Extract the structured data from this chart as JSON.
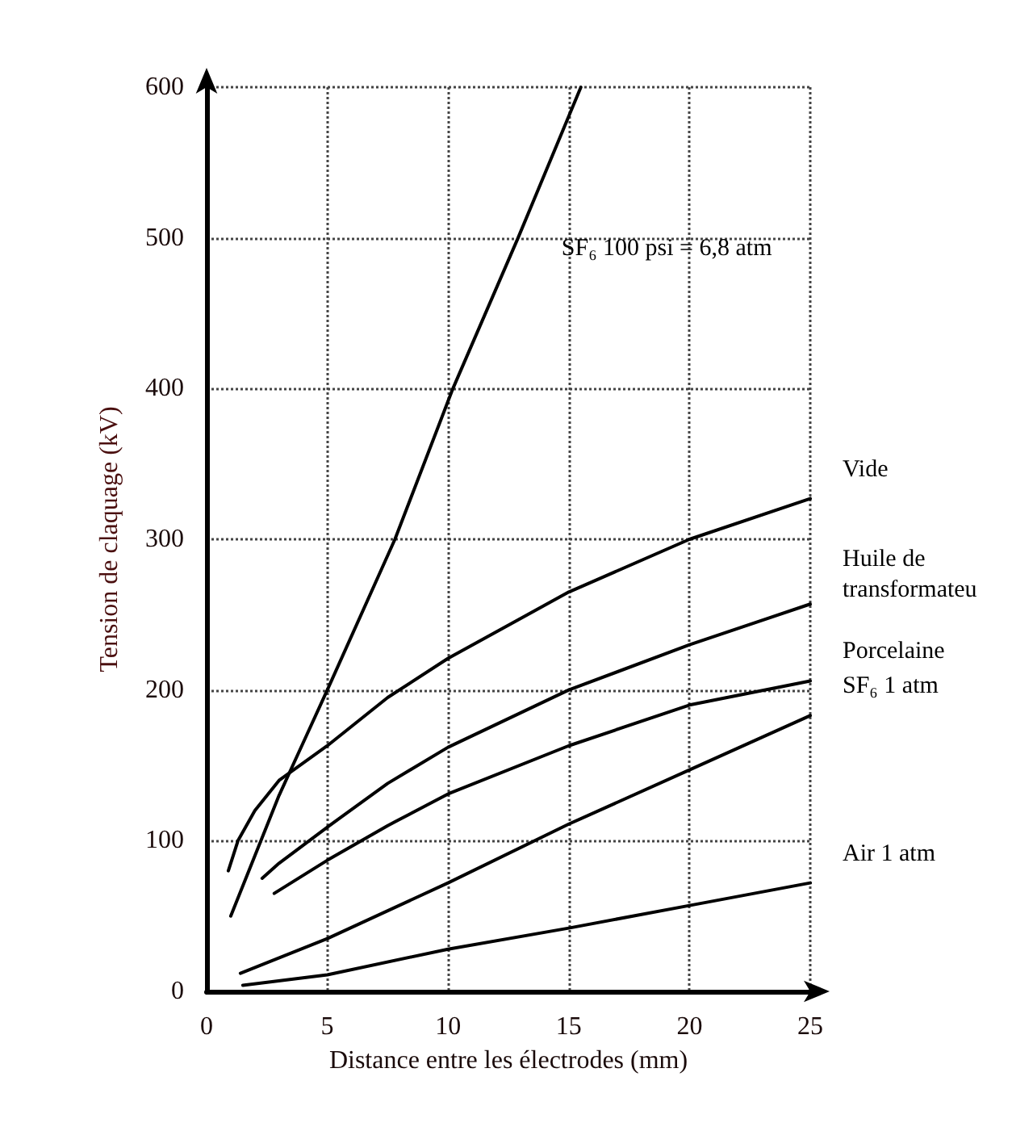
{
  "chart_data": {
    "type": "line",
    "xlabel": "Distance entre les électrodes (mm)",
    "ylabel": "Tension de claquage (kV)",
    "xlim": [
      0,
      25
    ],
    "xticks": [
      0,
      5,
      10,
      15,
      20,
      25
    ],
    "ylim": [
      0,
      600
    ],
    "yticks": [
      0,
      100,
      200,
      300,
      400,
      500,
      600
    ],
    "grid": true,
    "legend": false,
    "marker": "none",
    "line_style": "solid",
    "series": [
      {
        "name": "SF₆ 100 psi = 6,8 atm",
        "color": "#000000",
        "x": [
          1,
          2,
          3,
          4,
          5,
          7.8,
          10.2,
          12.9,
          15.5
        ],
        "values": [
          50,
          90,
          130,
          165,
          200,
          300,
          400,
          500,
          600
        ]
      },
      {
        "name": "Vide",
        "color": "#000000",
        "x": [
          0.9,
          1.3,
          2,
          3,
          5,
          7.5,
          10,
          15,
          20,
          25
        ],
        "values": [
          80,
          100,
          120,
          140,
          163,
          195,
          221,
          265,
          300,
          327
        ]
      },
      {
        "name": "Huile de transformateu",
        "color": "#000000",
        "x": [
          2.3,
          3,
          5,
          7.5,
          10,
          15,
          20,
          25
        ],
        "values": [
          75,
          85,
          109,
          138,
          162,
          200,
          230,
          257
        ]
      },
      {
        "name": "Porcelaine",
        "color": "#000000",
        "x": [
          2.8,
          5,
          7.5,
          10,
          15,
          20,
          25
        ],
        "values": [
          65,
          87,
          110,
          131,
          163,
          190,
          206
        ]
      },
      {
        "name": "SF₆ 1 atm",
        "color": "#000000",
        "x": [
          1.4,
          5,
          10,
          15,
          20,
          25
        ],
        "values": [
          12,
          35,
          72,
          111,
          147,
          183
        ]
      },
      {
        "name": "Air 1 atm",
        "color": "#000000",
        "x": [
          1.5,
          5,
          10,
          15,
          20,
          25
        ],
        "values": [
          4,
          11,
          28,
          42,
          57,
          72
        ]
      }
    ]
  }
}
